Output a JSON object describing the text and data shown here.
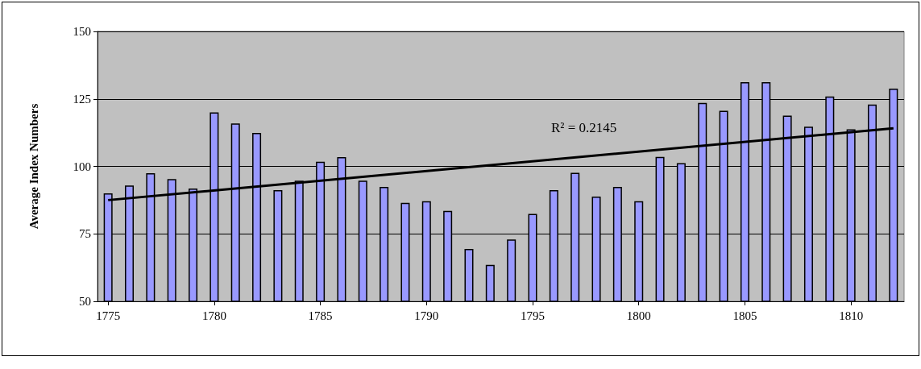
{
  "chart_data": {
    "type": "bar",
    "ylabel": "Average Index Numbers",
    "x": [
      1775,
      1776,
      1777,
      1778,
      1779,
      1780,
      1781,
      1782,
      1783,
      1784,
      1785,
      1786,
      1787,
      1788,
      1789,
      1790,
      1791,
      1792,
      1793,
      1794,
      1795,
      1796,
      1797,
      1798,
      1799,
      1800,
      1801,
      1802,
      1803,
      1804,
      1805,
      1806,
      1807,
      1808,
      1809,
      1810,
      1811,
      1812
    ],
    "series": [
      {
        "color": "#9999ff",
        "values": [
          90.0,
          92.9,
          97.5,
          95.3,
          91.8,
          120.0,
          115.9,
          112.4,
          91.2,
          94.7,
          101.7,
          103.4,
          94.7,
          92.4,
          86.5,
          87.1,
          83.5,
          69.4,
          63.5,
          72.9,
          82.4,
          91.2,
          97.6,
          88.8,
          92.4,
          87.1,
          103.5,
          101.2,
          123.5,
          120.6,
          131.2,
          131.2,
          118.8,
          114.7,
          125.9,
          113.7,
          122.9,
          128.8
        ]
      },
      {
        "type": "line",
        "color": "#000000",
        "x": [
          1775,
          1812
        ],
        "values": [
          87.5,
          114.1
        ]
      }
    ],
    "annotations": [
      "R² = 0.2145"
    ],
    "xlim": [
      1774.5,
      1812.5
    ],
    "xticks": [
      1775,
      1780,
      1785,
      1790,
      1795,
      1800,
      1805,
      1810
    ],
    "ylim": [
      50,
      150
    ],
    "yticks": [
      50,
      75,
      100,
      125,
      150
    ],
    "grid": "y",
    "marker": "none",
    "line_style": "solid"
  }
}
